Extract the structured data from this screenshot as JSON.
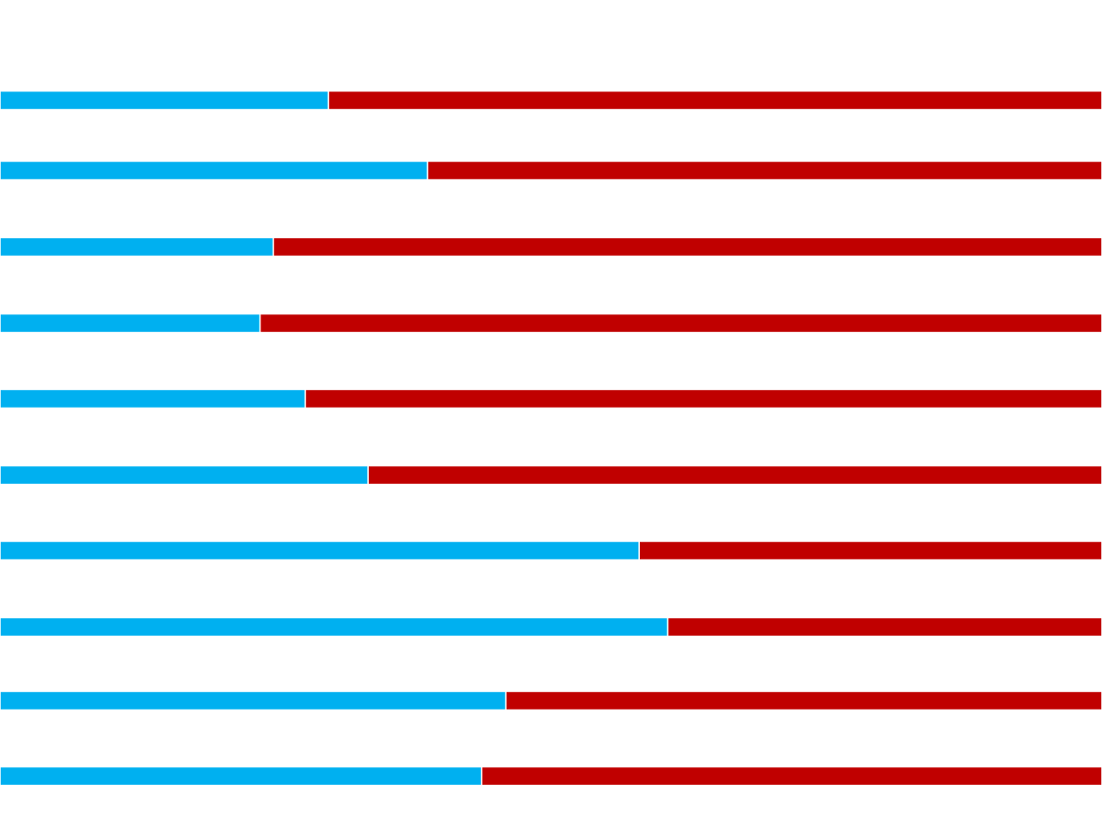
{
  "chart_data": {
    "type": "bar",
    "orientation": "horizontal",
    "stacked": true,
    "percent_stacked": true,
    "categories": [
      "",
      "",
      "",
      "",
      "",
      "",
      "",
      "",
      "",
      ""
    ],
    "series": [
      {
        "values": [
          29.8,
          38.8,
          24.8,
          23.6,
          27.7,
          33.4,
          58.0,
          60.6,
          45.9,
          43.7
        ],
        "color": "#00b0f0"
      },
      {
        "values": [
          70.2,
          61.2,
          75.2,
          76.4,
          72.3,
          66.6,
          42.0,
          39.4,
          54.1,
          56.3
        ],
        "color": "#c00000"
      }
    ],
    "xlim": [
      0,
      100
    ],
    "title": "",
    "xlabel": "",
    "ylabel": "",
    "grid": false,
    "legend": "none",
    "segment_separator_color": "#ffffff",
    "background": "#ffffff"
  }
}
